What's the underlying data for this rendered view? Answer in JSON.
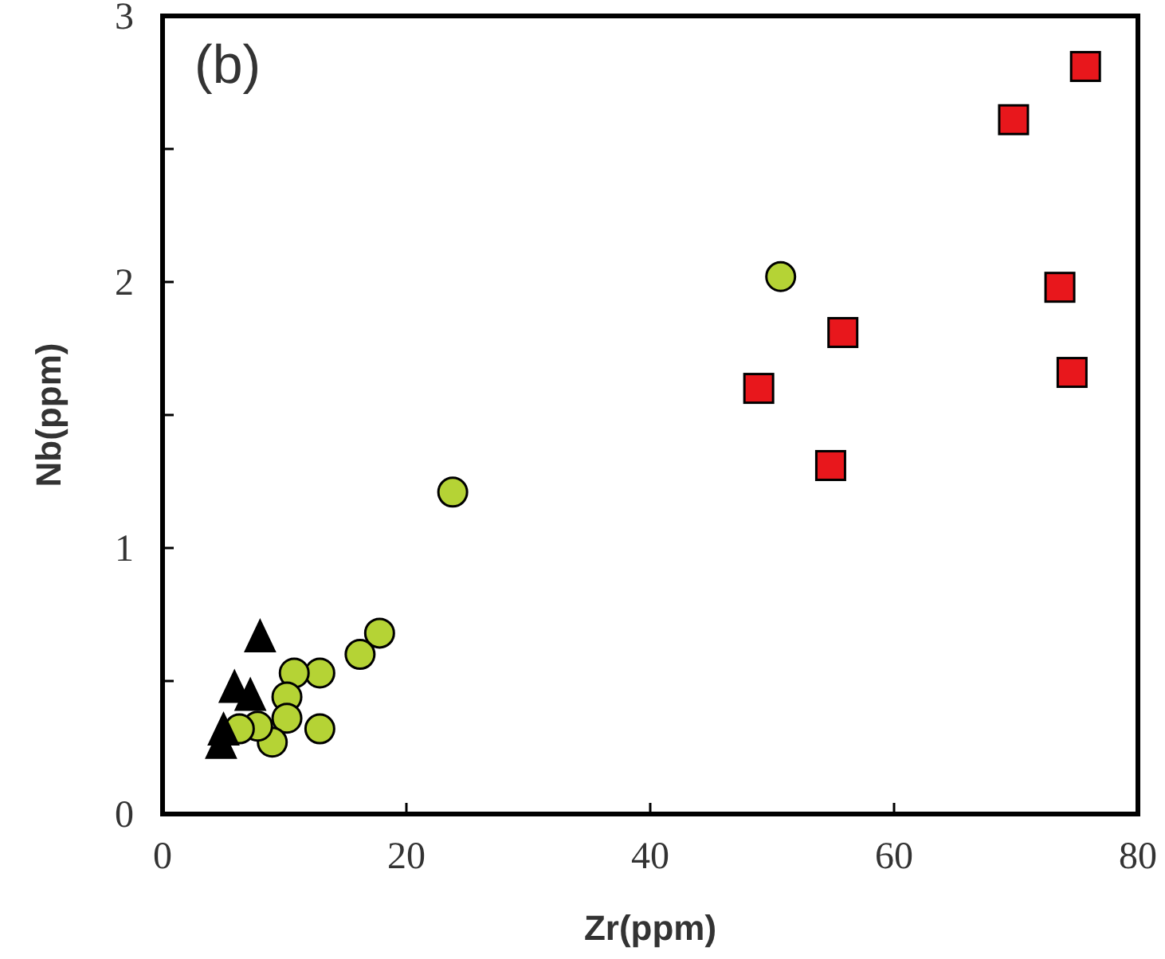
{
  "chart_data": {
    "type": "scatter",
    "xlabel": "Zr(ppm)",
    "ylabel": "Nb(ppm)",
    "annotations": [
      "(b)"
    ],
    "xlim": [
      0,
      80
    ],
    "xticks": [
      0,
      20,
      40,
      60,
      80
    ],
    "ylim": [
      0,
      3
    ],
    "yticks": [
      0,
      {
        "value": 0.5,
        "label": null
      },
      1,
      {
        "value": 1.5,
        "label": null
      },
      2,
      {
        "value": 2.5,
        "label": null
      },
      3
    ],
    "grid": false,
    "series": [
      {
        "color": "#e8171c",
        "marker": "square",
        "x": [
          48.9,
          54.8,
          55.8,
          69.8,
          73.6,
          74.6,
          75.7
        ],
        "values": [
          1.6,
          1.31,
          1.81,
          2.61,
          1.98,
          1.66,
          2.81
        ]
      },
      {
        "color": "#b5d335",
        "marker": "circle",
        "x": [
          50.7,
          23.8,
          17.8,
          16.2,
          12.9,
          12.9,
          10.8,
          10.2,
          10.2,
          9.0,
          7.8,
          6.3
        ],
        "values": [
          2.02,
          1.21,
          0.68,
          0.6,
          0.32,
          0.53,
          0.53,
          0.44,
          0.36,
          0.27,
          0.33,
          0.32
        ]
      },
      {
        "color": "#000000",
        "marker": "triangle",
        "x": [
          8.0,
          5.9,
          7.2,
          5.0,
          4.8
        ],
        "values": [
          0.66,
          0.47,
          0.44,
          0.31,
          0.26
        ]
      }
    ]
  }
}
